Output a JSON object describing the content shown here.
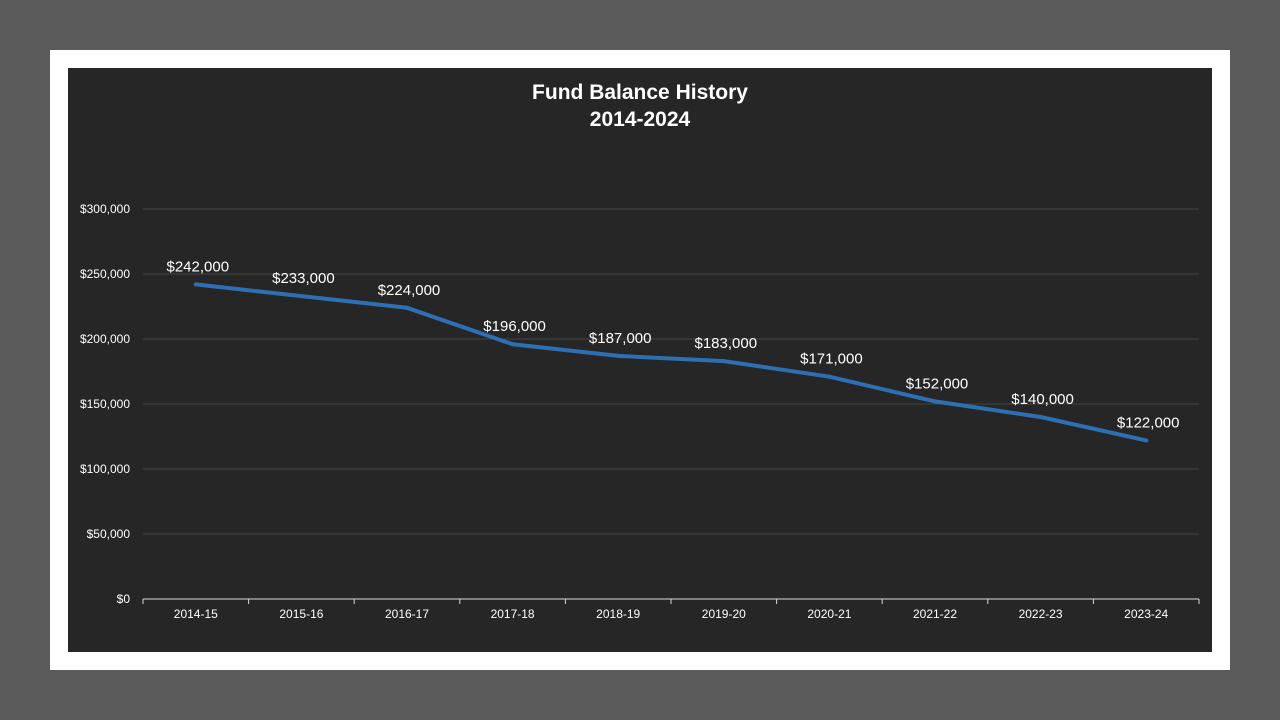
{
  "chart_data": {
    "type": "line",
    "title_line1": "Fund Balance History",
    "title_line2": "2014-2024",
    "xlabel": "",
    "ylabel": "",
    "categories": [
      "2014-15",
      "2015-16",
      "2016-17",
      "2017-18",
      "2018-19",
      "2019-20",
      "2020-21",
      "2021-22",
      "2022-23",
      "2023-24"
    ],
    "series": [
      {
        "values": [
          242000,
          233000,
          224000,
          196000,
          187000,
          183000,
          171000,
          152000,
          140000,
          122000
        ],
        "data_labels": [
          "$242,000",
          "$233,000",
          "$224,000",
          "$196,000",
          "$187,000",
          "$183,000",
          "$171,000",
          "$152,000",
          "$140,000",
          "$122,000"
        ]
      }
    ],
    "ylim": [
      0,
      300000
    ],
    "y_ticks": [
      0,
      50000,
      100000,
      150000,
      200000,
      250000,
      300000
    ],
    "y_tick_labels": [
      "$0",
      "$50,000",
      "$100,000",
      "$150,000",
      "$200,000",
      "$250,000",
      "$300,000"
    ],
    "grid": true,
    "legend": "none",
    "colors": {
      "line": "#2e6fb3",
      "background": "#262626",
      "gridline": "#444444",
      "text": "#ffffff"
    }
  }
}
